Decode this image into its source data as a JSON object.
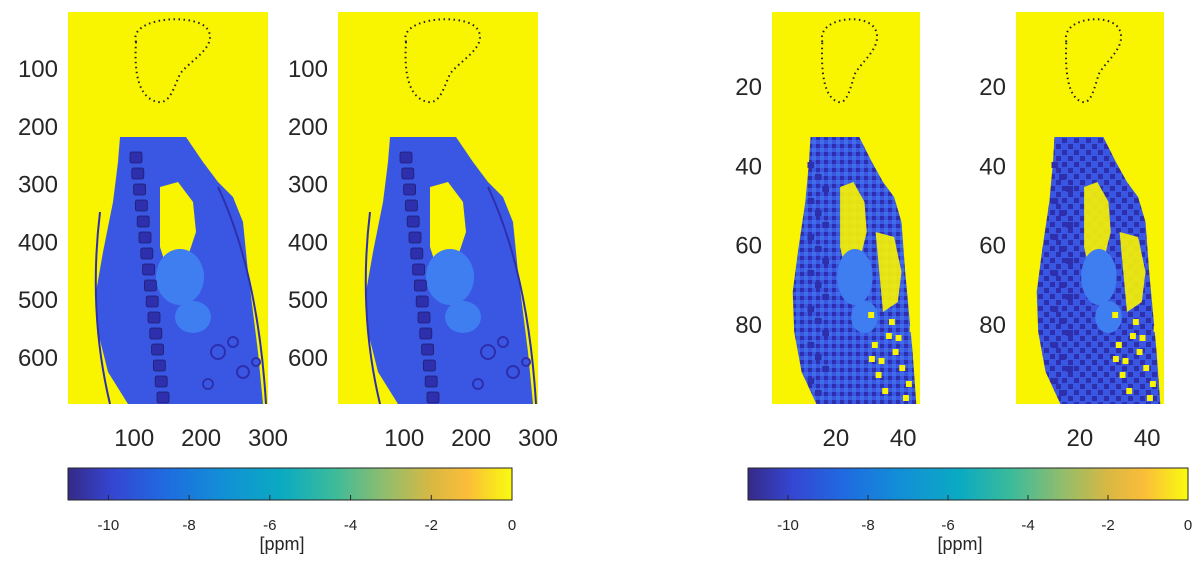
{
  "colors": {
    "background": "#f9f400",
    "tissue": "#3a57e4",
    "dark_tissue": "#2e2fad",
    "mid_tissue": "#3f7ef1",
    "outline": "#222222",
    "axis_text": "#262626"
  },
  "chart_data": [
    {
      "type": "heatmap",
      "name": "high-res-map-1",
      "xticks": [
        100,
        200,
        300
      ],
      "yticks": [
        100,
        200,
        300,
        400,
        500,
        600
      ],
      "xlim": [
        1,
        300
      ],
      "ylim": [
        1,
        680
      ]
    },
    {
      "type": "heatmap",
      "name": "high-res-map-2",
      "xticks": [
        100,
        200,
        300
      ],
      "yticks": [
        100,
        200,
        300,
        400,
        500,
        600
      ],
      "xlim": [
        1,
        300
      ],
      "ylim": [
        1,
        680
      ]
    },
    {
      "type": "heatmap",
      "name": "low-res-map-1",
      "xticks": [
        20,
        40
      ],
      "yticks": [
        20,
        40,
        60,
        80
      ],
      "xlim": [
        1,
        45
      ],
      "ylim": [
        1,
        100
      ]
    },
    {
      "type": "heatmap",
      "name": "low-res-map-2",
      "xticks": [
        20,
        40
      ],
      "yticks": [
        20,
        40,
        60,
        80
      ],
      "xlim": [
        1,
        45
      ],
      "ylim": [
        1,
        100
      ]
    }
  ],
  "colorbars": [
    {
      "ticks": [
        -10,
        -8,
        -6,
        -4,
        -2,
        0
      ],
      "range": [
        -11,
        0
      ],
      "label": "[ppm]",
      "colormap": "parula"
    },
    {
      "ticks": [
        -10,
        -8,
        -6,
        -4,
        -2,
        0
      ],
      "range": [
        -11,
        0
      ],
      "label": "[ppm]",
      "colormap": "parula"
    }
  ]
}
